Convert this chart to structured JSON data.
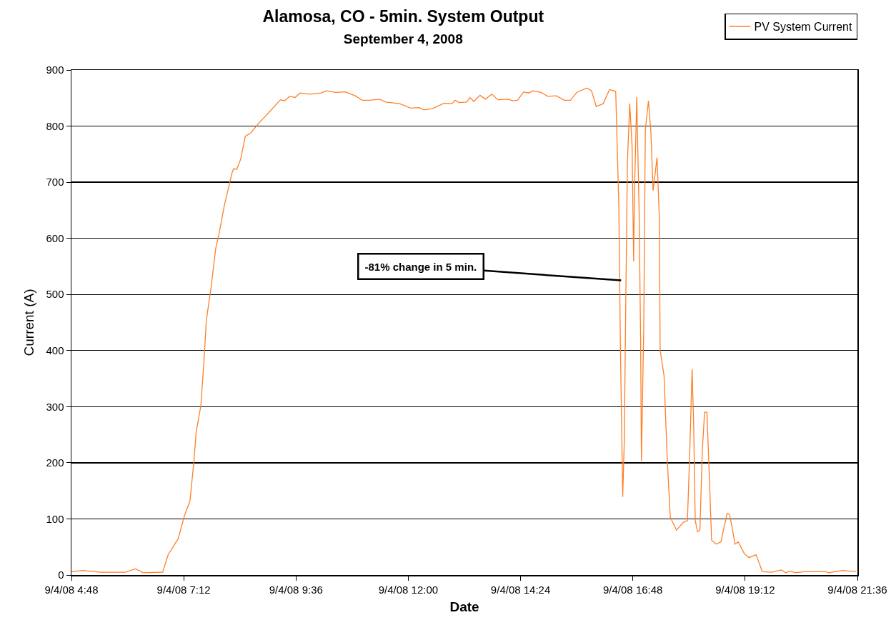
{
  "chart_data": {
    "type": "line",
    "title": "Alamosa, CO - 5min. System Output",
    "subtitle": "September 4, 2008",
    "xlabel": "Date",
    "ylabel": "Current (A)",
    "xlim": [
      "2008-09-04T04:48",
      "2008-09-04T21:36"
    ],
    "xticks": [
      {
        "value": "2008-09-04T04:48",
        "label": "9/4/08 4:48"
      },
      {
        "value": "2008-09-04T07:12",
        "label": "9/4/08 7:12"
      },
      {
        "value": "2008-09-04T09:36",
        "label": "9/4/08 9:36"
      },
      {
        "value": "2008-09-04T12:00",
        "label": "9/4/08 12:00"
      },
      {
        "value": "2008-09-04T14:24",
        "label": "9/4/08 14:24"
      },
      {
        "value": "2008-09-04T16:48",
        "label": "9/4/08 16:48"
      },
      {
        "value": "2008-09-04T19:12",
        "label": "9/4/08 19:12"
      },
      {
        "value": "2008-09-04T21:36",
        "label": "9/4/08 21:36"
      }
    ],
    "ylim": [
      0,
      900
    ],
    "yticks": [
      0,
      100,
      200,
      300,
      400,
      500,
      600,
      700,
      800,
      900
    ],
    "grid": "y",
    "legend": "top right",
    "line_style": "solid",
    "annotations": [
      {
        "text": "-81% change in 5 min.",
        "x": "2008-09-04T16:33",
        "y": 525
      }
    ],
    "series": [
      {
        "name": "PV System Current",
        "color": "#ff7f27",
        "x": [
          "2008-09-04T04:48",
          "2008-09-04T05:02",
          "2008-09-04T05:25",
          "2008-09-04T05:57",
          "2008-09-04T06:10",
          "2008-09-04T06:20",
          "2008-09-04T06:43",
          "2008-09-04T06:45",
          "2008-09-04T06:52",
          "2008-09-04T07:05",
          "2008-09-04T07:13",
          "2008-09-04T07:20",
          "2008-09-04T07:25",
          "2008-09-04T07:28",
          "2008-09-04T07:34",
          "2008-09-04T07:38",
          "2008-09-04T07:41",
          "2008-09-04T07:47",
          "2008-09-04T07:53",
          "2008-09-04T07:57",
          "2008-09-04T08:04",
          "2008-09-04T08:14",
          "2008-09-04T08:16",
          "2008-09-04T08:20",
          "2008-09-04T08:25",
          "2008-09-04T08:31",
          "2008-09-04T08:38",
          "2008-09-04T08:41",
          "2008-09-04T08:48",
          "2008-09-04T09:01",
          "2008-09-04T09:16",
          "2008-09-04T09:21",
          "2008-09-04T09:28",
          "2008-09-04T09:35",
          "2008-09-04T09:41",
          "2008-09-04T09:53",
          "2008-09-04T10:08",
          "2008-09-04T10:15",
          "2008-09-04T10:27",
          "2008-09-04T10:39",
          "2008-09-04T10:52",
          "2008-09-04T11:01",
          "2008-09-04T11:10",
          "2008-09-04T11:23",
          "2008-09-04T11:31",
          "2008-09-04T11:49",
          "2008-09-04T12:03",
          "2008-09-04T12:14",
          "2008-09-04T12:20",
          "2008-09-04T12:31",
          "2008-09-04T12:46",
          "2008-09-04T12:56",
          "2008-09-04T13:00",
          "2008-09-04T13:05",
          "2008-09-04T13:15",
          "2008-09-04T13:19",
          "2008-09-04T13:24",
          "2008-09-04T13:32",
          "2008-09-04T13:39",
          "2008-09-04T13:47",
          "2008-09-04T13:55",
          "2008-09-04T14:08",
          "2008-09-04T14:14",
          "2008-09-04T14:20",
          "2008-09-04T14:28",
          "2008-09-04T14:34",
          "2008-09-04T14:40",
          "2008-09-04T14:50",
          "2008-09-04T14:59",
          "2008-09-04T15:10",
          "2008-09-04T15:20",
          "2008-09-04T15:28",
          "2008-09-04T15:36",
          "2008-09-04T15:49",
          "2008-09-04T15:55",
          "2008-09-04T16:01",
          "2008-09-04T16:10",
          "2008-09-04T16:18",
          "2008-09-04T16:26",
          "2008-09-04T16:30",
          "2008-09-04T16:32",
          "2008-09-04T16:35",
          "2008-09-04T16:37",
          "2008-09-04T16:39",
          "2008-09-04T16:41",
          "2008-09-04T16:44",
          "2008-09-04T16:47",
          "2008-09-04T16:49",
          "2008-09-04T16:50",
          "2008-09-04T16:53",
          "2008-09-04T16:56",
          "2008-09-04T16:58",
          "2008-09-04T16:59",
          "2008-09-04T17:02",
          "2008-09-04T17:04",
          "2008-09-04T17:08",
          "2008-09-04T17:11",
          "2008-09-04T17:14",
          "2008-09-04T17:19",
          "2008-09-04T17:22",
          "2008-09-04T17:23",
          "2008-09-04T17:28",
          "2008-09-04T17:32",
          "2008-09-04T17:36",
          "2008-09-04T17:44",
          "2008-09-04T17:53",
          "2008-09-04T17:58",
          "2008-09-04T18:01",
          "2008-09-04T18:04",
          "2008-09-04T18:06",
          "2008-09-04T18:08",
          "2008-09-04T18:11",
          "2008-09-04T18:14",
          "2008-09-04T18:17",
          "2008-09-04T18:20",
          "2008-09-04T18:23",
          "2008-09-04T18:26",
          "2008-09-04T18:29",
          "2008-09-04T18:35",
          "2008-09-04T18:41",
          "2008-09-04T18:44",
          "2008-09-04T18:49",
          "2008-09-04T18:52",
          "2008-09-04T18:55",
          "2008-09-04T18:59",
          "2008-09-04T19:03",
          "2008-09-04T19:11",
          "2008-09-04T19:17",
          "2008-09-04T19:26",
          "2008-09-04T19:29",
          "2008-09-04T19:34",
          "2008-09-04T19:46",
          "2008-09-04T19:58",
          "2008-09-04T20:04",
          "2008-09-04T20:10",
          "2008-09-04T20:16",
          "2008-09-04T20:28",
          "2008-09-04T20:56",
          "2008-09-04T20:59",
          "2008-09-04T21:17",
          "2008-09-04T21:34"
        ],
        "values": [
          6,
          8,
          5,
          5,
          11,
          4,
          5,
          5,
          36,
          65,
          106,
          132,
          202,
          255,
          302,
          383,
          454,
          512,
          582,
          606,
          658,
          717,
          724,
          723,
          741,
          782,
          788,
          793,
          805,
          824,
          847,
          845,
          853,
          851,
          859,
          857,
          859,
          863,
          860,
          861,
          854,
          846,
          846,
          848,
          843,
          840,
          832,
          833,
          829,
          831,
          841,
          840,
          846,
          842,
          843,
          851,
          844,
          855,
          848,
          857,
          847,
          848,
          845,
          846,
          861,
          859,
          863,
          860,
          853,
          854,
          846,
          846,
          860,
          868,
          863,
          835,
          840,
          865,
          862,
          659,
          413,
          139,
          238,
          495,
          735,
          840,
          764,
          559,
          676,
          852,
          647,
          414,
          203,
          442,
          793,
          845,
          793,
          685,
          744,
          635,
          401,
          355,
          209,
          103,
          80,
          94,
          97,
          220,
          367,
          267,
          97,
          77,
          80,
          220,
          290,
          290,
          179,
          62,
          55,
          59,
          79,
          110,
          108,
          87,
          55,
          59,
          38,
          31,
          36,
          25,
          6,
          5,
          9,
          4,
          7,
          4,
          6,
          6,
          4,
          8,
          6
        ]
      }
    ]
  }
}
